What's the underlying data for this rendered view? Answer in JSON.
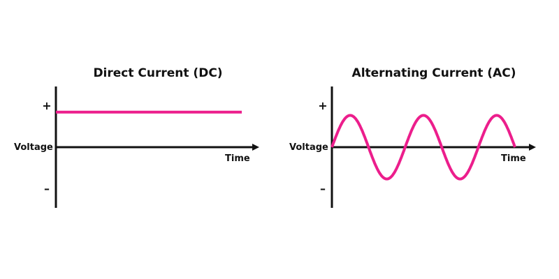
{
  "colors": {
    "signal": "#ec1e8c",
    "axis": "#111111",
    "background": "#ffffff"
  },
  "chart_data": [
    {
      "type": "line",
      "title": "Direct Current (DC)",
      "ylabel": "Voltage",
      "xlabel": "Time",
      "plus_label": "+",
      "minus_label": "–",
      "ylim": [
        -1,
        1
      ],
      "xlim": [
        0,
        1
      ],
      "series": [
        {
          "x": [
            0,
            1
          ],
          "y": [
            0.53,
            0.53
          ]
        }
      ]
    },
    {
      "type": "line",
      "title": "Alternating Current (AC)",
      "ylabel": "Voltage",
      "xlabel": "Time",
      "plus_label": "+",
      "minus_label": "–",
      "ylim": [
        -1,
        1
      ],
      "xlim": [
        0,
        1
      ],
      "cycles": 2.5,
      "amplitude": 0.48
    }
  ]
}
